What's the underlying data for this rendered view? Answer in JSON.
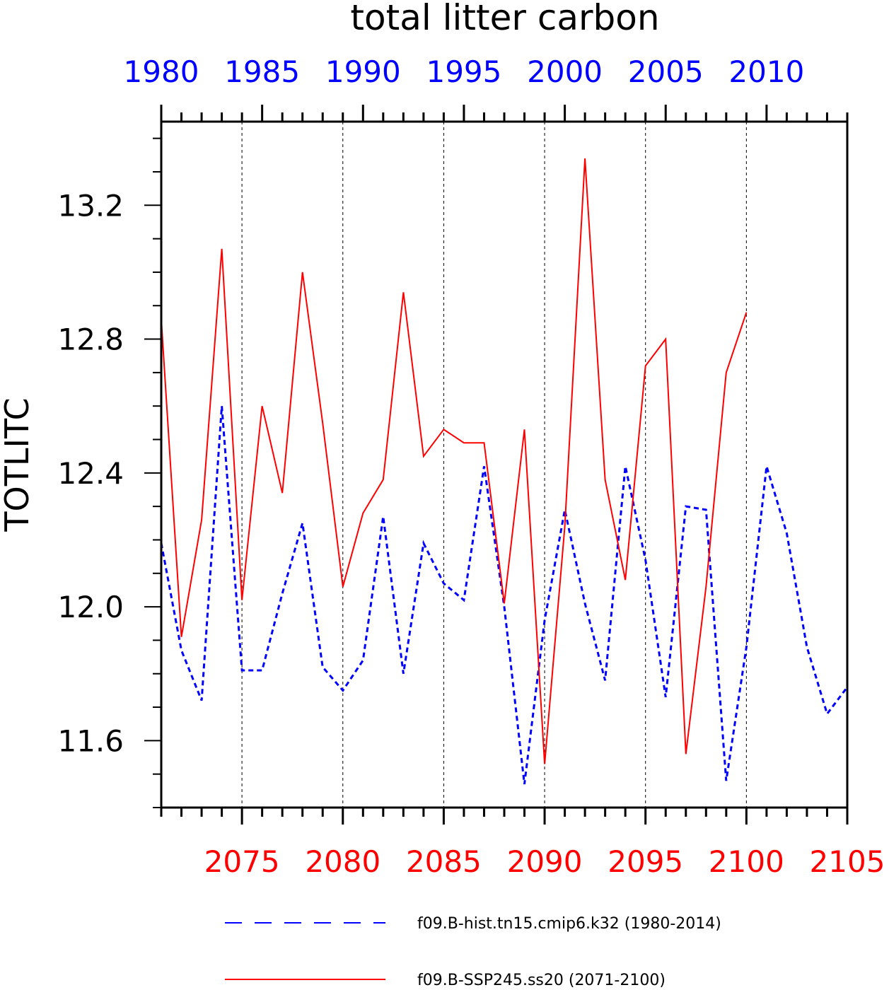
{
  "chart_data": {
    "type": "line",
    "title": "total litter carbon",
    "ylabel": "TOTLITC",
    "ylim": [
      11.4,
      13.45
    ],
    "y_major_ticks": [
      "11.6",
      "12.0",
      "12.4",
      "12.8",
      "13.2"
    ],
    "y_minor_step": 0.1,
    "top_axis": {
      "range": [
        1980,
        2014
      ],
      "tick_labels": [
        "1980",
        "1985",
        "1990",
        "1995",
        "2000",
        "2005",
        "2010"
      ],
      "color": "#0000ff"
    },
    "bottom_axis": {
      "range": [
        2071,
        2105
      ],
      "tick_labels": [
        "2075",
        "2080",
        "2085",
        "2090",
        "2095",
        "2100",
        "2105"
      ],
      "color": "#ff0000"
    },
    "vertical_gridlines": true,
    "series": [
      {
        "name": "f09.B-hist.tn15.cmip6.k32 (1980-2014)",
        "axis": "top",
        "color": "#0000ff",
        "dash": "dashed",
        "x": [
          1980,
          1981,
          1982,
          1983,
          1984,
          1985,
          1986,
          1987,
          1988,
          1989,
          1990,
          1991,
          1992,
          1993,
          1994,
          1995,
          1996,
          1997,
          1998,
          1999,
          2000,
          2001,
          2002,
          2003,
          2004,
          2005,
          2006,
          2007,
          2008,
          2009,
          2010,
          2011,
          2012,
          2013,
          2014
        ],
        "values": [
          12.19,
          11.87,
          11.72,
          12.6,
          11.81,
          11.81,
          12.04,
          12.25,
          11.82,
          11.75,
          11.84,
          12.27,
          11.8,
          12.19,
          12.07,
          12.02,
          12.42,
          12.0,
          11.47,
          11.96,
          12.29,
          12.01,
          11.78,
          12.42,
          12.14,
          11.73,
          12.3,
          12.29,
          11.48,
          11.88,
          12.42,
          12.22,
          11.88,
          11.68,
          11.76
        ]
      },
      {
        "name": "f09.B-SSP245.ss20 (2071-2100)",
        "axis": "bottom",
        "color": "#ff0000",
        "dash": "solid",
        "x": [
          2071,
          2072,
          2073,
          2074,
          2075,
          2076,
          2077,
          2078,
          2079,
          2080,
          2081,
          2082,
          2083,
          2084,
          2085,
          2086,
          2087,
          2088,
          2089,
          2090,
          2091,
          2092,
          2093,
          2094,
          2095,
          2096,
          2097,
          2098,
          2099,
          2100
        ],
        "values": [
          12.86,
          11.91,
          12.26,
          13.07,
          12.02,
          12.6,
          12.34,
          13.0,
          12.55,
          12.06,
          12.28,
          12.38,
          12.94,
          12.45,
          12.53,
          12.49,
          12.49,
          12.01,
          12.53,
          11.53,
          12.24,
          13.34,
          12.38,
          12.08,
          12.72,
          12.8,
          11.56,
          12.06,
          12.7,
          12.88
        ]
      }
    ],
    "legend": {
      "placement": "bottom",
      "entries": [
        "f09.B-hist.tn15.cmip6.k32 (1980-2014)",
        "f09.B-SSP245.ss20 (2071-2100)"
      ]
    }
  }
}
